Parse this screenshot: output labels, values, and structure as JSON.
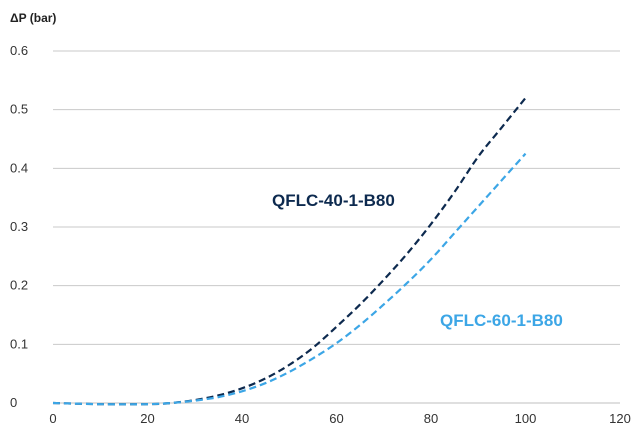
{
  "chart_data": {
    "type": "line",
    "title": "",
    "xlabel": "",
    "ylabel": "ΔP (bar)",
    "xlim": [
      0,
      120
    ],
    "ylim": [
      0,
      0.6
    ],
    "x_ticks": [
      0,
      20,
      40,
      60,
      80,
      100,
      120
    ],
    "y_ticks": [
      0,
      0.1,
      0.2,
      0.3,
      0.4,
      0.5,
      0.6
    ],
    "x_tick_labels": [
      "0",
      "20",
      "40",
      "60",
      "80",
      "100",
      "120"
    ],
    "y_tick_labels": [
      "0",
      "0.1",
      "0.2",
      "0.3",
      "0.4",
      "0.5",
      "0.6"
    ],
    "grid": "horizontal",
    "series": [
      {
        "name": "QFLC-40-1-B80",
        "color": "#0d2a4f",
        "style": "dashed",
        "x": [
          0,
          10,
          20,
          25,
          30,
          35,
          40,
          45,
          50,
          55,
          60,
          65,
          70,
          75,
          80,
          85,
          90,
          95,
          100
        ],
        "y": [
          0,
          -0.002,
          -0.002,
          0.0,
          0.005,
          0.013,
          0.025,
          0.042,
          0.065,
          0.094,
          0.13,
          0.168,
          0.21,
          0.255,
          0.305,
          0.36,
          0.42,
          0.47,
          0.52
        ]
      },
      {
        "name": "QFLC-60-1-B80",
        "color": "#3ca6e6",
        "style": "dashed",
        "x": [
          0,
          10,
          20,
          25,
          30,
          35,
          40,
          45,
          50,
          55,
          60,
          65,
          70,
          75,
          80,
          85,
          90,
          95,
          100
        ],
        "y": [
          0,
          -0.002,
          -0.002,
          0.0,
          0.004,
          0.01,
          0.02,
          0.034,
          0.053,
          0.076,
          0.102,
          0.133,
          0.168,
          0.205,
          0.245,
          0.29,
          0.335,
          0.38,
          0.425
        ]
      }
    ]
  }
}
